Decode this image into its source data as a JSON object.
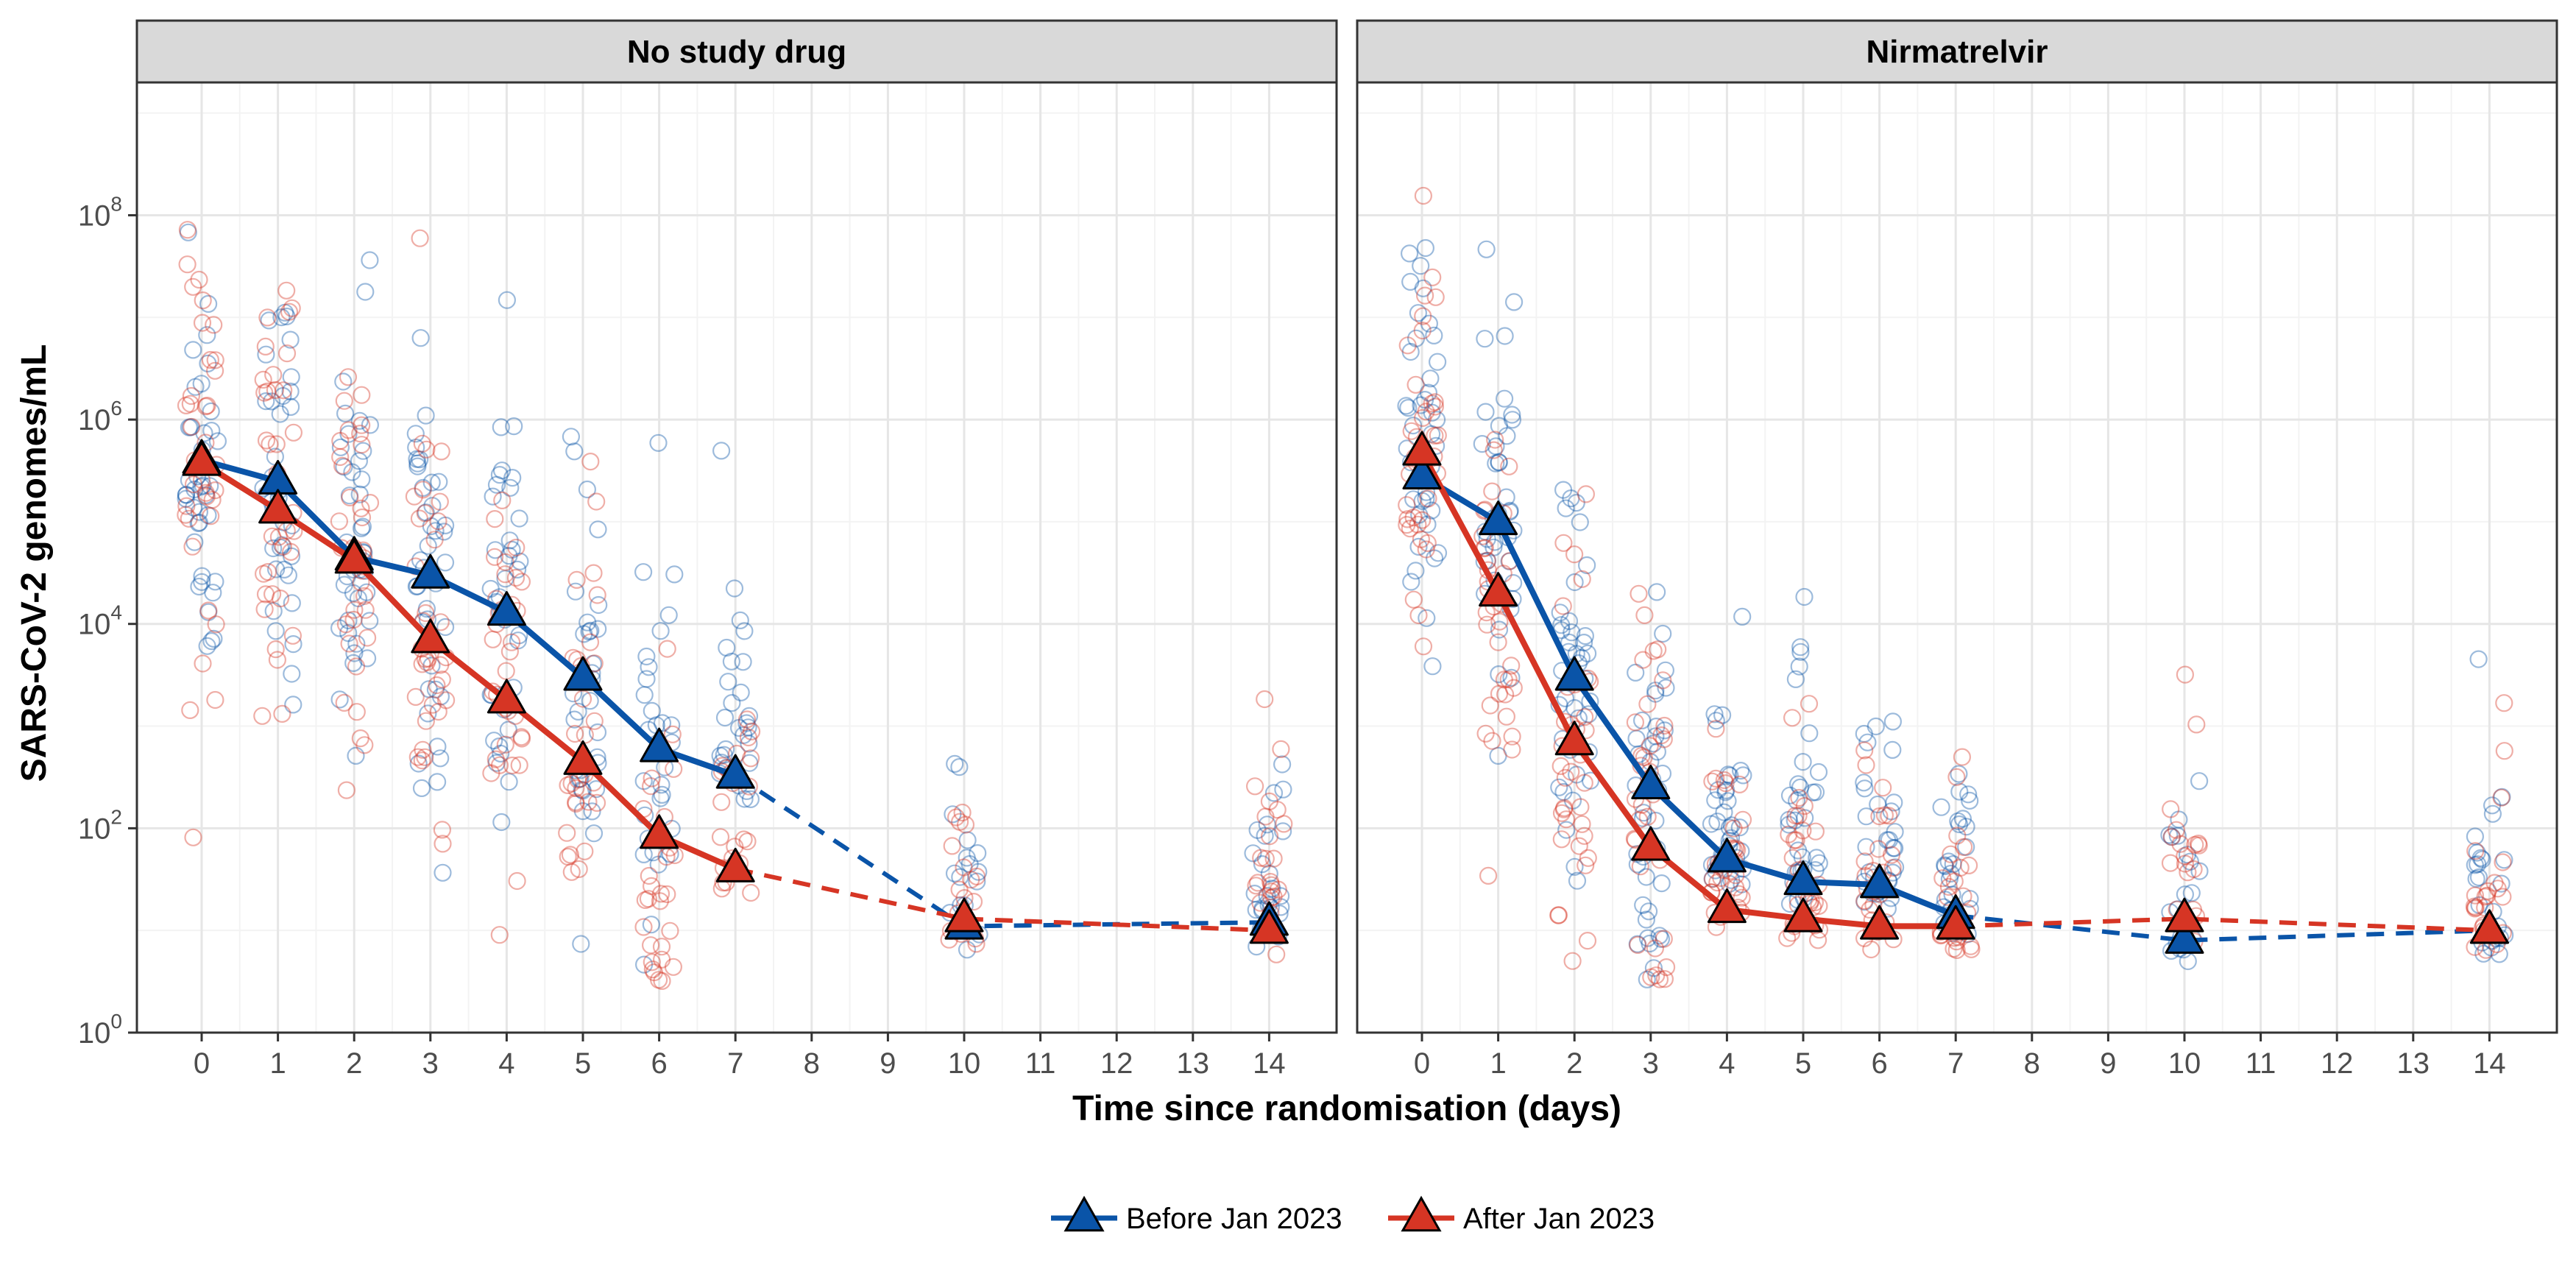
{
  "chart_data": {
    "type": "line",
    "xlabel": "Time since randomisation (days)",
    "ylabel": "SARS-CoV-2 genomes/mL",
    "y_scale": "log10",
    "ylim": [
      1,
      1000000000
    ],
    "y_ticks": [
      {
        "base": "10",
        "exp": "0"
      },
      {
        "base": "10",
        "exp": "2"
      },
      {
        "base": "10",
        "exp": "4"
      },
      {
        "base": "10",
        "exp": "6"
      },
      {
        "base": "10",
        "exp": "8"
      }
    ],
    "x_ticks": [
      "0",
      "1",
      "2",
      "3",
      "4",
      "5",
      "6",
      "7",
      "8",
      "9",
      "10",
      "11",
      "12",
      "13",
      "14"
    ],
    "grid": true,
    "legend_position": "bottom",
    "series_styles": [
      {
        "name": "Before Jan 2023",
        "color": "#0A54A8"
      },
      {
        "name": "After Jan 2023",
        "color": "#D63524"
      }
    ],
    "panels": [
      {
        "title": "No study drug",
        "series": [
          {
            "name": "Before Jan 2023",
            "x": [
              0,
              1,
              2,
              3,
              4,
              5,
              6,
              7,
              10,
              14
            ],
            "y": [
              400000,
              250000,
              45000,
              30000,
              13000,
              3000,
              600,
              330,
              11,
              12
            ]
          },
          {
            "name": "After Jan 2023",
            "x": [
              0,
              1,
              2,
              3,
              4,
              5,
              6,
              7,
              10,
              14
            ],
            "y": [
              380000,
              130000,
              42000,
              7000,
              1800,
              450,
              85,
              40,
              13,
              10
            ]
          }
        ]
      },
      {
        "title": "Nirmatrelvir",
        "series": [
          {
            "name": "Before Jan 2023",
            "x": [
              0,
              1,
              2,
              3,
              4,
              5,
              6,
              7,
              10,
              14
            ],
            "y": [
              280000,
              100000,
              3000,
              260,
              50,
              30,
              28,
              14,
              8,
              10
            ]
          },
          {
            "name": "After Jan 2023",
            "x": [
              0,
              1,
              2,
              3,
              4,
              5,
              6,
              7,
              10,
              14
            ],
            "y": [
              480000,
              20000,
              700,
              65,
              16,
              13,
              11,
              11,
              13,
              10
            ]
          }
        ]
      }
    ]
  }
}
